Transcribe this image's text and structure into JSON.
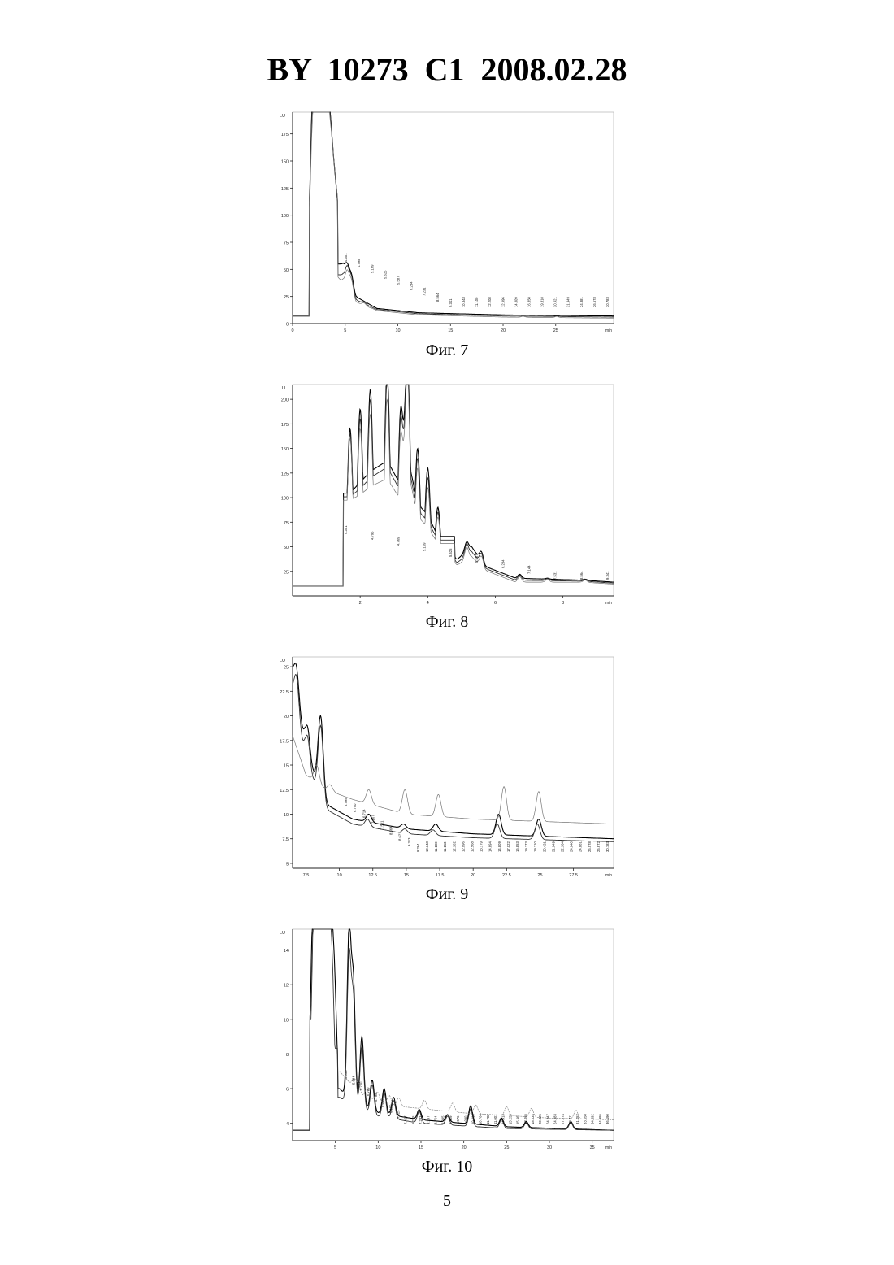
{
  "header": {
    "text": "BY  10273  C1  2008.02.28"
  },
  "page_number": "5",
  "chart_data": [
    {
      "type": "line",
      "caption": "Фиг. 7",
      "unit_label": "LU",
      "x_unit": "min",
      "xlim": [
        0,
        30.5
      ],
      "ylim": [
        0,
        195
      ],
      "x_ticks": [
        0,
        5,
        10,
        15,
        20,
        25
      ],
      "x_tick_labels": [
        "0",
        "5",
        "10",
        "15",
        "20",
        "25"
      ],
      "y_ticks": [
        0,
        25,
        50,
        75,
        100,
        125,
        150,
        175
      ],
      "y_tick_labels": [
        "0",
        "25",
        "50",
        "75",
        "100",
        "125",
        "150",
        "175"
      ],
      "baseline": 7,
      "series": [
        {
          "start": 1.6,
          "end": 4.3,
          "peaks": [
            [
              1.9,
              180
            ],
            [
              2.3,
              190
            ],
            [
              2.7,
              200
            ],
            [
              3.1,
              170
            ],
            [
              3.5,
              150
            ],
            [
              3.9,
              110
            ],
            [
              4.3,
              90
            ]
          ],
          "tail": [
            [
              4.8,
              55
            ],
            [
              6,
              25
            ],
            [
              8,
              14
            ],
            [
              12,
              10
            ],
            [
              20,
              8
            ],
            [
              30.5,
              7
            ]
          ]
        },
        {
          "start": 1.6,
          "end": 4.3,
          "peaks": [
            [
              1.9,
              175
            ],
            [
              2.3,
              185
            ],
            [
              2.8,
              195
            ],
            [
              3.2,
              160
            ],
            [
              3.6,
              140
            ],
            [
              4.0,
              100
            ],
            [
              4.4,
              80
            ]
          ],
          "tail": [
            [
              4.8,
              45
            ],
            [
              6,
              22
            ],
            [
              8,
              13
            ],
            [
              12,
              9
            ],
            [
              20,
              7
            ],
            [
              30.5,
              6
            ]
          ]
        },
        {
          "start": 1.6,
          "end": 4.3,
          "peaks": [
            [
              1.9,
              170
            ],
            [
              2.4,
              200
            ],
            [
              2.9,
              180
            ],
            [
              3.3,
              150
            ],
            [
              3.7,
              125
            ],
            [
              4.1,
              95
            ],
            [
              4.5,
              75
            ]
          ],
          "tail": [
            [
              4.8,
              40
            ],
            [
              6,
              20
            ],
            [
              8,
              12
            ],
            [
              12,
              8
            ],
            [
              20,
              6
            ],
            [
              30.5,
              5
            ]
          ]
        }
      ],
      "small_peaks": [
        [
          4.2,
          45
        ],
        [
          5.2,
          55
        ],
        [
          5.6,
          45
        ],
        [
          6.8,
          20
        ],
        [
          7.6,
          14
        ],
        [
          8.6,
          10
        ],
        [
          9.3,
          9
        ],
        [
          21.9,
          7
        ],
        [
          25.1,
          7
        ]
      ],
      "peak_labels": [
        "4.301",
        "4.795",
        "5.169",
        "5.625",
        "5.587",
        "6.234",
        "7.231",
        "8.564",
        "9.341",
        "10.348",
        "11.100",
        "12.208",
        "12.996",
        "14.809",
        "16.850",
        "19.310",
        "20.421",
        "21.949",
        "24.881",
        "26.578",
        "30.783"
      ]
    },
    {
      "type": "line",
      "caption": "Фиг. 8",
      "unit_label": "LU",
      "x_unit": "min",
      "xlim": [
        0,
        9.5
      ],
      "ylim": [
        0,
        215
      ],
      "x_ticks": [
        2,
        4,
        6,
        8
      ],
      "x_tick_labels": [
        "2",
        "4",
        "6",
        "8"
      ],
      "y_ticks": [
        25,
        50,
        75,
        100,
        125,
        150,
        175,
        200
      ],
      "y_tick_labels": [
        "25",
        "50",
        "75",
        "100",
        "125",
        "150",
        "175",
        "200"
      ],
      "baseline": 10,
      "series": [
        {
          "start": 1.5,
          "end": 4.8,
          "peaks": [
            [
              1.7,
              170
            ],
            [
              2.0,
              190
            ],
            [
              2.3,
              210
            ],
            [
              2.8,
              230
            ],
            [
              3.2,
              185
            ],
            [
              3.4,
              240
            ],
            [
              3.7,
              150
            ],
            [
              4.0,
              130
            ],
            [
              4.3,
              90
            ]
          ],
          "tail": [
            [
              4.8,
              35
            ],
            [
              5.3,
              50
            ],
            [
              5.7,
              30
            ],
            [
              6.6,
              18
            ],
            [
              8.6,
              16
            ],
            [
              9.5,
              14
            ]
          ]
        },
        {
          "start": 1.5,
          "end": 4.8,
          "peaks": [
            [
              1.7,
              165
            ],
            [
              2.0,
              180
            ],
            [
              2.3,
              200
            ],
            [
              2.8,
              220
            ],
            [
              3.2,
              175
            ],
            [
              3.4,
              230
            ],
            [
              3.7,
              140
            ],
            [
              4.0,
              120
            ],
            [
              4.3,
              85
            ]
          ],
          "tail": [
            [
              4.8,
              32
            ],
            [
              5.3,
              45
            ],
            [
              5.7,
              28
            ],
            [
              6.6,
              16
            ],
            [
              8.6,
              15
            ],
            [
              9.5,
              13
            ]
          ]
        },
        {
          "start": 1.5,
          "end": 4.8,
          "peaks": [
            [
              1.7,
              160
            ],
            [
              2.0,
              170
            ],
            [
              2.3,
              185
            ],
            [
              2.8,
              200
            ],
            [
              3.2,
              160
            ],
            [
              3.4,
              220
            ],
            [
              3.7,
              130
            ],
            [
              4.0,
              110
            ],
            [
              4.3,
              80
            ]
          ],
          "tail": [
            [
              4.8,
              30
            ],
            [
              5.3,
              40
            ],
            [
              5.7,
              26
            ],
            [
              6.6,
              14
            ],
            [
              8.6,
              14
            ],
            [
              9.5,
              12
            ]
          ]
        }
      ],
      "small_peaks": [
        [
          4.27,
          80
        ],
        [
          4.72,
          50
        ],
        [
          5.15,
          55
        ],
        [
          5.59,
          45
        ],
        [
          6.72,
          22
        ],
        [
          7.54,
          18
        ],
        [
          8.66,
          17
        ]
      ],
      "peak_labels": [
        "4.301",
        "4.795",
        "4.769",
        "5.169",
        "5.625",
        "5.587",
        "6.234",
        "7.144",
        "7.531",
        "8.564",
        "9.341"
      ]
    },
    {
      "type": "line",
      "caption": "Фиг. 9",
      "unit_label": "LU",
      "x_unit": "min",
      "xlim": [
        6.5,
        30.5
      ],
      "ylim": [
        4.5,
        26
      ],
      "x_ticks": [
        7.5,
        10,
        12.5,
        15,
        17.5,
        20,
        22.5,
        25,
        27.5
      ],
      "x_tick_labels": [
        "7.5",
        "10",
        "12.5",
        "15",
        "17.5",
        "20",
        "22.5",
        "25",
        "27.5"
      ],
      "y_ticks": [
        5,
        7.5,
        10,
        12.5,
        15,
        17.5,
        20,
        22.5,
        25
      ],
      "y_tick_labels": [
        "5",
        "7.5",
        "10",
        "12.5",
        "15",
        "17.5",
        "20",
        "22.5",
        "25"
      ],
      "series": [
        {
          "decay": [
            [
              6.5,
              24
            ],
            [
              7.5,
              16
            ],
            [
              9,
              11
            ],
            [
              11,
              9.5
            ],
            [
              15,
              8.5
            ],
            [
              20,
              8
            ],
            [
              30.5,
              7.5
            ]
          ],
          "peaks": [
            [
              6.8,
              25
            ],
            [
              7.6,
              19
            ],
            [
              8.6,
              20
            ],
            [
              12.2,
              10
            ],
            [
              14.8,
              9
            ],
            [
              17.2,
              9
            ],
            [
              21.9,
              10
            ],
            [
              24.9,
              9.5
            ]
          ]
        },
        {
          "decay": [
            [
              6.5,
              22
            ],
            [
              7.5,
              15
            ],
            [
              9,
              10.5
            ],
            [
              11,
              9
            ],
            [
              15,
              8
            ],
            [
              20,
              7.6
            ],
            [
              30.5,
              7.2
            ]
          ],
          "peaks": [
            [
              6.8,
              24
            ],
            [
              7.6,
              18
            ],
            [
              8.6,
              19
            ],
            [
              12.1,
              9.5
            ],
            [
              14.9,
              8.5
            ],
            [
              17,
              8.4
            ],
            [
              21.8,
              9
            ],
            [
              24.8,
              9
            ]
          ]
        },
        {
          "decay": [
            [
              6.5,
              18
            ],
            [
              7.5,
              14
            ],
            [
              9,
              12.5
            ],
            [
              11,
              11.5
            ],
            [
              15,
              10
            ],
            [
              20,
              9.5
            ],
            [
              30.5,
              9
            ]
          ],
          "peaks": [
            [
              8.3,
              15
            ],
            [
              9.3,
              13
            ],
            [
              12.2,
              12.5
            ],
            [
              14.9,
              12.5
            ],
            [
              17.4,
              12
            ],
            [
              22.3,
              12.8
            ],
            [
              24.9,
              12.3
            ]
          ]
        }
      ],
      "peak_labels": [
        "6.795",
        "6.740",
        "6.714",
        "7.167",
        "7.531",
        "8.564",
        "8.621",
        "9.313",
        "9.264",
        "10.348",
        "11.100",
        "11.163",
        "12.182",
        "12.996",
        "12.568",
        "13.179",
        "14.894",
        "14.809",
        "17.022",
        "16.853",
        "19.373",
        "19.310",
        "20.421",
        "21.949",
        "22.164",
        "24.940",
        "24.881",
        "26.578",
        "26.972",
        "30.783"
      ]
    },
    {
      "type": "line",
      "caption": "Фиг. 10",
      "unit_label": "LU",
      "x_unit": "min",
      "xlim": [
        0,
        37.5
      ],
      "ylim": [
        3,
        15.2
      ],
      "x_ticks": [
        5,
        10,
        15,
        20,
        25,
        30,
        35
      ],
      "x_tick_labels": [
        "5",
        "10",
        "15",
        "20",
        "25",
        "30",
        "35"
      ],
      "y_ticks": [
        4,
        6,
        8,
        10,
        12,
        14
      ],
      "y_tick_labels": [
        "4",
        "6",
        "8",
        "10",
        "12",
        "14"
      ],
      "baseline": 3.6,
      "series": [
        {
          "start": 2.0,
          "end": 5.3,
          "peaks": [
            [
              2.4,
              15
            ],
            [
              2.9,
              15
            ],
            [
              3.4,
              14
            ],
            [
              3.9,
              15
            ],
            [
              4.4,
              13
            ],
            [
              4.9,
              11
            ]
          ],
          "tail": [
            [
              5.5,
              6
            ],
            [
              7,
              5.2
            ],
            [
              10,
              4.6
            ],
            [
              15,
              4.2
            ],
            [
              25,
              3.8
            ],
            [
              37.5,
              3.6
            ]
          ]
        },
        {
          "start": 2.0,
          "end": 5.3,
          "peaks": [
            [
              2.5,
              15
            ],
            [
              3.0,
              14.5
            ],
            [
              3.6,
              15
            ],
            [
              4.1,
              12.5
            ],
            [
              4.6,
              12
            ]
          ],
          "tail": [
            [
              5.5,
              5.5
            ],
            [
              7,
              5
            ],
            [
              10,
              4.4
            ],
            [
              15,
              4
            ],
            [
              25,
              3.7
            ],
            [
              37.5,
              3.6
            ]
          ]
        }
      ],
      "small_peaks": [
        [
          6.6,
          15
        ],
        [
          7.1,
          12
        ],
        [
          8.1,
          9
        ],
        [
          9.3,
          6.5
        ],
        [
          10.7,
          6
        ],
        [
          11.8,
          5.5
        ],
        [
          14.8,
          4.8
        ],
        [
          18.1,
          4.5
        ],
        [
          20.8,
          5
        ],
        [
          24.4,
          4.3
        ],
        [
          27.3,
          4.1
        ],
        [
          32.5,
          4.1
        ]
      ],
      "upper_trace": [
        [
          5.5,
          7
        ],
        [
          8,
          5.6
        ],
        [
          12,
          5
        ],
        [
          20,
          4.6
        ],
        [
          30,
          4.3
        ],
        [
          37.5,
          4.2
        ]
      ],
      "peak_labels": [
        "5.555",
        "5.694",
        "6.700",
        "6.789",
        "6.795",
        "5.898",
        "6.150",
        "7.425",
        "7.457",
        "6.255",
        "7.233",
        "9.297",
        "8.764",
        "8.995",
        "9.409",
        "9.576",
        "9.990",
        "10.610",
        "10.764",
        "11.782",
        "11.001",
        "14.413",
        "15.255",
        "15.461",
        "18.065",
        "18.034",
        "20.825",
        "24.347",
        "24.683",
        "27.274",
        "30.711",
        "31.452",
        "33.650",
        "34.392",
        "34.995",
        "36.190"
      ]
    }
  ]
}
